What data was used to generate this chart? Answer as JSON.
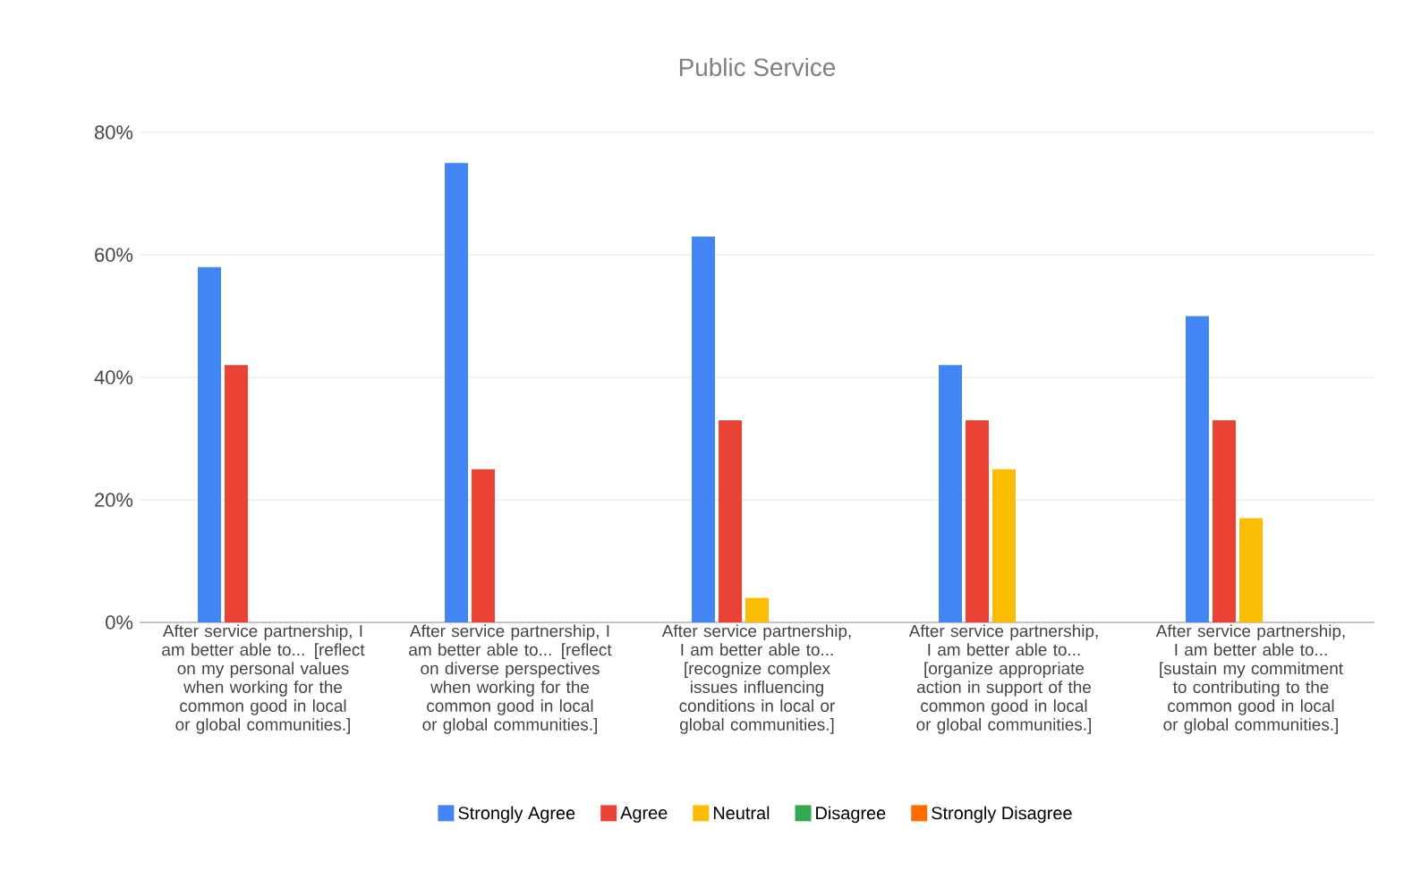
{
  "chart_data": {
    "type": "bar",
    "title": "Public Service",
    "categories": [
      "After service partnership, I am better able to... [reflect on my personal values when working for the common good in local or global communities.]",
      "After service partnership, I am better able to... [reflect on diverse perspectives when working for the common good in local or global communities.]",
      "After service partnership, I am better able to... [recognize complex issues influencing conditions in local or global communities.]",
      "After service partnership, I am better able to... [organize appropriate action in support of the common good in local or global communities.]",
      "After service partnership, I am better able to... [sustain my commitment to contributing to the common good in local or global communities.]"
    ],
    "series": [
      {
        "name": "Strongly Agree",
        "color": "#4285f4",
        "values": [
          58,
          75,
          63,
          42,
          50
        ]
      },
      {
        "name": "Agree",
        "color": "#ea4335",
        "values": [
          42,
          25,
          33,
          33,
          33
        ]
      },
      {
        "name": "Neutral",
        "color": "#fbbc04",
        "values": [
          0,
          0,
          4,
          25,
          17
        ]
      },
      {
        "name": "Disagree",
        "color": "#34a853",
        "values": [
          0,
          0,
          0,
          0,
          0
        ]
      },
      {
        "name": "Strongly Disagree",
        "color": "#ff6d01",
        "values": [
          0,
          0,
          0,
          0,
          0
        ]
      }
    ],
    "ylim": [
      0,
      80
    ],
    "yticks": [
      {
        "value": 0,
        "label": "0%"
      },
      {
        "value": 20,
        "label": "20%"
      },
      {
        "value": 40,
        "label": "40%"
      },
      {
        "value": 60,
        "label": "60%"
      },
      {
        "value": 80,
        "label": "80%"
      }
    ],
    "grid": "y",
    "legend": "bottom"
  }
}
